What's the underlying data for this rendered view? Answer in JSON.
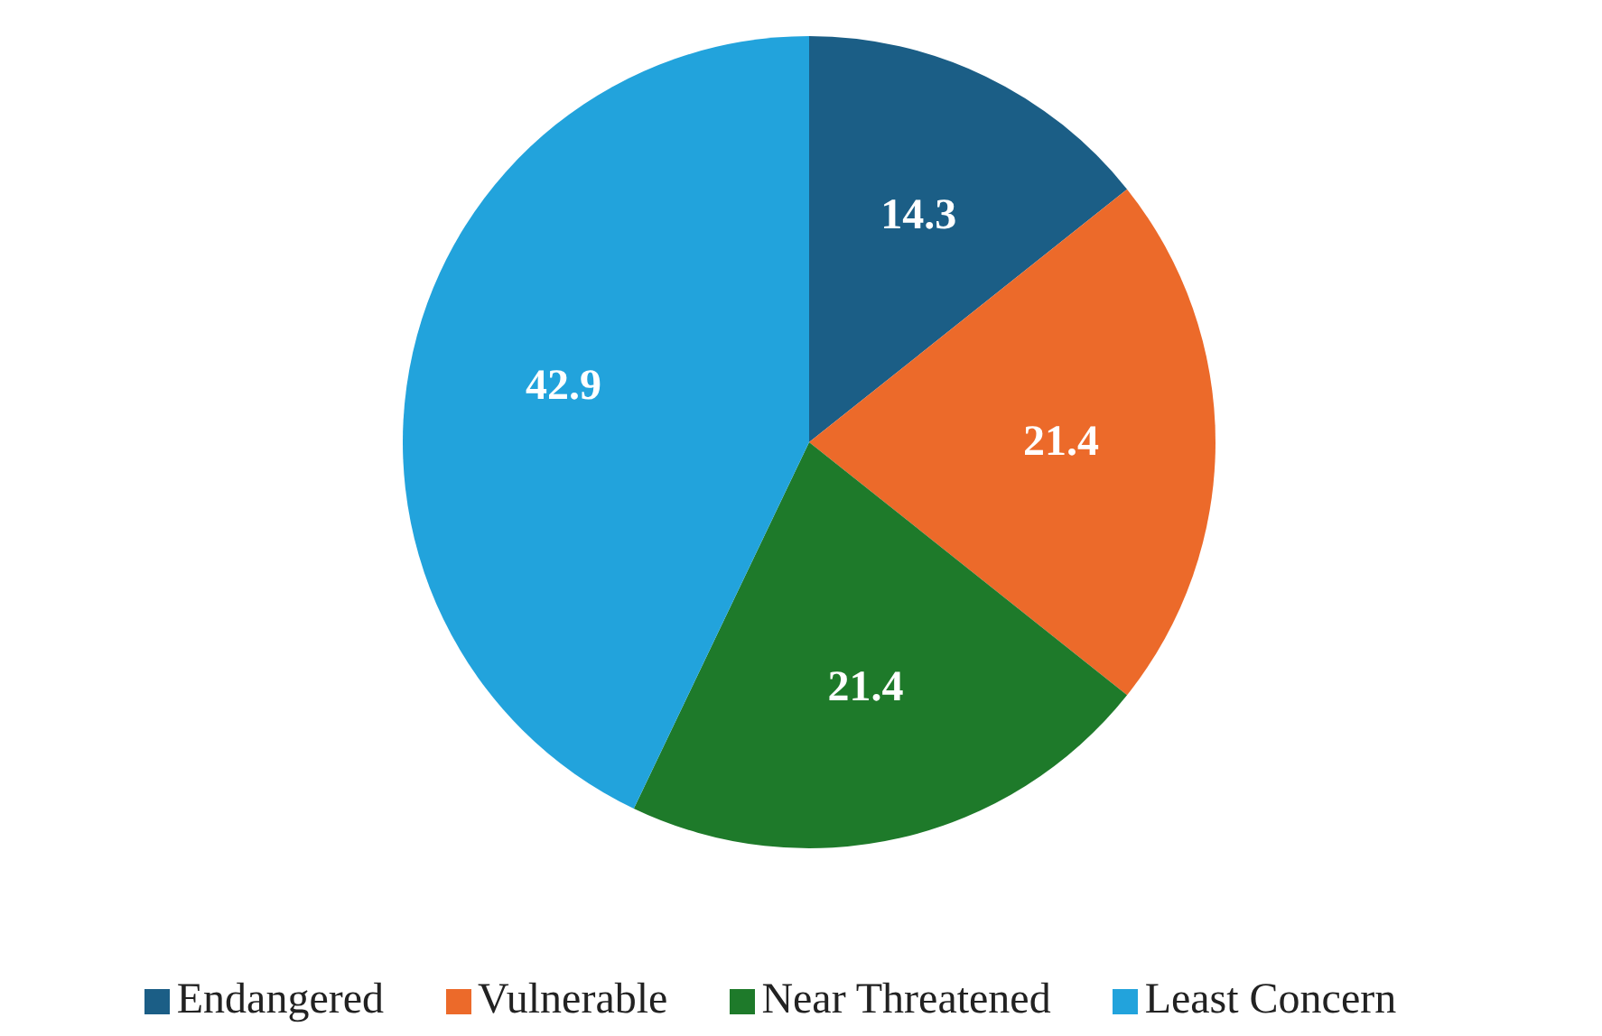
{
  "chart_data": {
    "type": "pie",
    "categories": [
      "Endangered",
      "Vulnerable",
      "Near Threatened",
      "Least Concern"
    ],
    "values": [
      14.3,
      21.4,
      21.4,
      42.9
    ],
    "colors": [
      "#1b5e86",
      "#ec6a2a",
      "#1e7a2a",
      "#22a3dc"
    ],
    "data_labels": true,
    "legend": "bottom"
  }
}
